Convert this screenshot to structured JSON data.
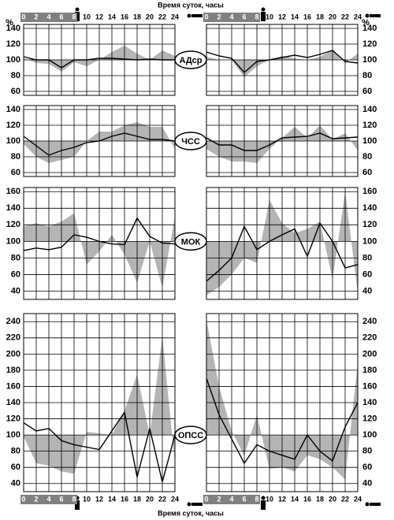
{
  "top_axis": {
    "title": "Время суток, часы"
  },
  "bottom_axis": {
    "title": "Время суток, часы"
  },
  "chart_data": [
    {
      "type": "line",
      "title": "АДср",
      "ylabel": "%",
      "x": [
        0,
        2,
        4,
        6,
        8,
        10,
        12,
        14,
        16,
        18,
        20,
        22,
        24
      ],
      "xlim": [
        0,
        24
      ],
      "xticks": [
        0,
        2,
        4,
        6,
        8,
        10,
        12,
        14,
        16,
        18,
        20,
        22,
        24
      ],
      "ylim": [
        55,
        145
      ],
      "yticks": [
        60,
        80,
        100,
        120,
        140
      ],
      "baseline": 100,
      "grid": true,
      "series": [
        {
          "color": "#b4b4b4",
          "fill": true,
          "values": [
            102,
            96,
            95,
            85,
            97,
            92,
            100,
            110,
            118,
            108,
            100,
            112,
            105
          ]
        },
        {
          "color": "#000000",
          "values": [
            104,
            100,
            100,
            90,
            100,
            100,
            102,
            102,
            101,
            100,
            101,
            100,
            100
          ]
        }
      ]
    },
    {
      "type": "line",
      "ylabel": "%",
      "x": [
        0,
        2,
        4,
        6,
        8,
        10,
        12,
        14,
        16,
        18,
        20,
        22,
        24
      ],
      "xlim": [
        0,
        24
      ],
      "xticks": [
        0,
        2,
        4,
        6,
        8,
        10,
        12,
        14,
        16,
        18,
        20,
        22,
        24
      ],
      "ylim": [
        55,
        145
      ],
      "yticks": [
        60,
        80,
        100,
        120,
        140
      ],
      "baseline": 100,
      "grid": true,
      "series": [
        {
          "color": "#b4b4b4",
          "fill": true,
          "values": [
            104,
            100,
            100,
            78,
            92,
            100,
            105,
            102,
            100,
            104,
            112,
            96,
            108
          ]
        },
        {
          "color": "#000000",
          "values": [
            110,
            105,
            102,
            84,
            98,
            100,
            103,
            106,
            103,
            107,
            112,
            98,
            96
          ]
        }
      ]
    },
    {
      "type": "line",
      "title": "ЧСС",
      "x": [
        0,
        2,
        4,
        6,
        8,
        10,
        12,
        14,
        16,
        18,
        20,
        22,
        24
      ],
      "xlim": [
        0,
        24
      ],
      "xticks": [
        0,
        2,
        4,
        6,
        8,
        10,
        12,
        14,
        16,
        18,
        20,
        22,
        24
      ],
      "ylim": [
        55,
        145
      ],
      "yticks": [
        60,
        80,
        100,
        120,
        140
      ],
      "baseline": 100,
      "grid": true,
      "series": [
        {
          "color": "#b4b4b4",
          "fill": true,
          "values": [
            96,
            80,
            72,
            76,
            80,
            100,
            112,
            112,
            120,
            124,
            118,
            118,
            90
          ]
        },
        {
          "color": "#000000",
          "values": [
            106,
            94,
            82,
            88,
            92,
            98,
            100,
            106,
            110,
            106,
            102,
            102,
            100
          ]
        }
      ]
    },
    {
      "type": "line",
      "x": [
        0,
        2,
        4,
        6,
        8,
        10,
        12,
        14,
        16,
        18,
        20,
        22,
        24
      ],
      "xlim": [
        0,
        24
      ],
      "xticks": [
        0,
        2,
        4,
        6,
        8,
        10,
        12,
        14,
        16,
        18,
        20,
        22,
        24
      ],
      "ylim": [
        55,
        145
      ],
      "yticks": [
        60,
        80,
        100,
        120,
        140
      ],
      "baseline": 100,
      "grid": true,
      "series": [
        {
          "color": "#b4b4b4",
          "fill": true,
          "values": [
            90,
            80,
            74,
            74,
            72,
            90,
            104,
            118,
            104,
            120,
            102,
            110,
            88
          ]
        },
        {
          "color": "#000000",
          "values": [
            104,
            95,
            95,
            88,
            88,
            95,
            104,
            105,
            106,
            110,
            103,
            104,
            105
          ]
        }
      ]
    },
    {
      "type": "line",
      "title": "МОК",
      "x": [
        0,
        2,
        4,
        6,
        8,
        10,
        12,
        14,
        16,
        18,
        20,
        22,
        24
      ],
      "xlim": [
        0,
        24
      ],
      "xticks": [
        0,
        2,
        4,
        6,
        8,
        10,
        12,
        14,
        16,
        18,
        20,
        22,
        24
      ],
      "ylim": [
        30,
        165
      ],
      "yticks": [
        40,
        60,
        80,
        100,
        120,
        140,
        160
      ],
      "baseline": 100,
      "grid": true,
      "series": [
        {
          "color": "#b4b4b4",
          "fill": true,
          "values": [
            118,
            122,
            118,
            124,
            134,
            72,
            88,
            108,
            84,
            50,
            100,
            44,
            130
          ]
        },
        {
          "color": "#000000",
          "values": [
            89,
            92,
            90,
            93,
            108,
            105,
            100,
            97,
            96,
            128,
            106,
            98,
            97
          ]
        }
      ]
    },
    {
      "type": "line",
      "x": [
        0,
        2,
        4,
        6,
        8,
        10,
        12,
        14,
        16,
        18,
        20,
        22,
        24
      ],
      "xlim": [
        0,
        24
      ],
      "xticks": [
        0,
        2,
        4,
        6,
        8,
        10,
        12,
        14,
        16,
        18,
        20,
        22,
        24
      ],
      "ylim": [
        30,
        165
      ],
      "yticks": [
        40,
        60,
        80,
        100,
        120,
        140,
        160
      ],
      "baseline": 100,
      "grid": true,
      "series": [
        {
          "color": "#b4b4b4",
          "fill": true,
          "values": [
            35,
            45,
            60,
            80,
            74,
            150,
            122,
            110,
            115,
            124,
            54,
            160,
            38
          ]
        },
        {
          "color": "#000000",
          "values": [
            52,
            65,
            80,
            118,
            90,
            100,
            108,
            115,
            82,
            122,
            100,
            68,
            72
          ]
        }
      ]
    },
    {
      "type": "line",
      "title": "ОПСС",
      "x": [
        0,
        2,
        4,
        6,
        8,
        10,
        12,
        14,
        16,
        18,
        20,
        22,
        24
      ],
      "xlim": [
        0,
        24
      ],
      "xticks": [
        0,
        2,
        4,
        6,
        8,
        10,
        12,
        14,
        16,
        18,
        20,
        22,
        24
      ],
      "ylim": [
        30,
        250
      ],
      "yticks": [
        40,
        60,
        80,
        100,
        120,
        140,
        160,
        180,
        200,
        220,
        240
      ],
      "baseline": 100,
      "grid": true,
      "series": [
        {
          "color": "#b4b4b4",
          "fill": true,
          "values": [
            98,
            65,
            62,
            55,
            52,
            104,
            102,
            100,
            130,
            175,
            100,
            222,
            65
          ]
        },
        {
          "color": "#000000",
          "values": [
            115,
            105,
            108,
            93,
            88,
            85,
            82,
            105,
            128,
            48,
            108,
            42,
            100
          ]
        }
      ]
    },
    {
      "type": "line",
      "x": [
        0,
        2,
        4,
        6,
        8,
        10,
        12,
        14,
        16,
        18,
        20,
        22,
        24
      ],
      "xlim": [
        0,
        24
      ],
      "xticks": [
        0,
        2,
        4,
        6,
        8,
        10,
        12,
        14,
        16,
        18,
        20,
        22,
        24
      ],
      "ylim": [
        30,
        250
      ],
      "yticks": [
        40,
        60,
        80,
        100,
        120,
        140,
        160,
        180,
        200,
        220,
        240
      ],
      "baseline": 100,
      "grid": true,
      "series": [
        {
          "color": "#b4b4b4",
          "fill": true,
          "values": [
            242,
            160,
            105,
            74,
            125,
            58,
            60,
            55,
            75,
            70,
            60,
            45,
            190
          ]
        },
        {
          "color": "#000000",
          "values": [
            170,
            125,
            95,
            65,
            88,
            80,
            75,
            70,
            100,
            80,
            68,
            110,
            140
          ]
        }
      ]
    }
  ]
}
